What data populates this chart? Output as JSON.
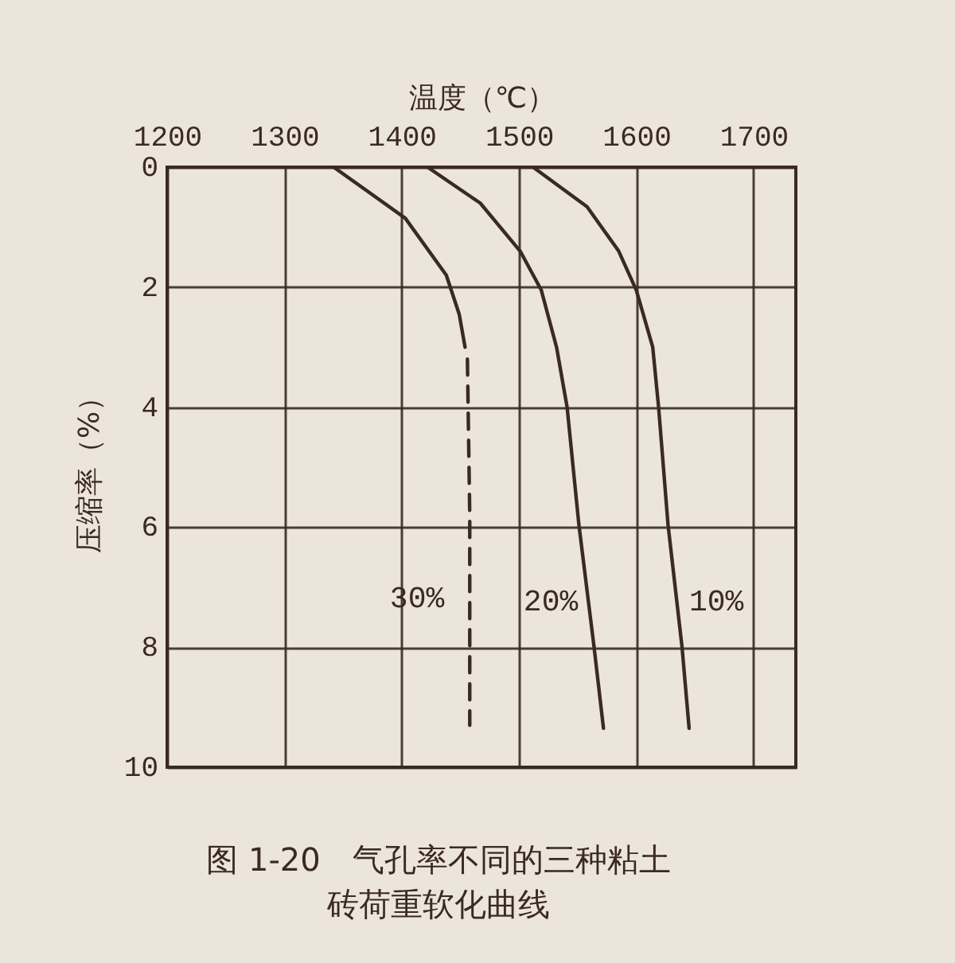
{
  "chart_data": {
    "type": "line",
    "title": "图 1-20　气孔率不同的三种粘土砖荷重软化曲线",
    "xlabel": "温度（℃）",
    "ylabel": "压缩率（%）",
    "xlim": [
      1200,
      1736
    ],
    "xticks": [
      1200,
      1300,
      1400,
      1500,
      1600,
      1700
    ],
    "ylim": [
      10,
      0
    ],
    "yticks": [
      0,
      2,
      4,
      6,
      8,
      10
    ],
    "grid": true,
    "series": [
      {
        "color": "#3a2a22",
        "line_style": "solid",
        "x": [
          1342,
          1403,
          1438,
          1449,
          1454
        ],
        "values": [
          0,
          0.85,
          1.8,
          2.45,
          3.0
        ]
      },
      {
        "name": "30%",
        "color": "#3a2a22",
        "line_style": "dashed",
        "x": [
          1456,
          1458,
          1458
        ],
        "values": [
          3.2,
          5.8,
          9.3
        ]
      },
      {
        "name": "20%",
        "color": "#3a2a22",
        "line_style": "solid",
        "x": [
          1422,
          1467,
          1501,
          1519,
          1532,
          1541,
          1551,
          1564,
          1572
        ],
        "values": [
          0,
          0.6,
          1.4,
          2.05,
          3.0,
          4.0,
          5.95,
          8.0,
          9.35
        ]
      },
      {
        "name": "10%",
        "color": "#3a2a22",
        "line_style": "solid",
        "x": [
          1512,
          1558,
          1585,
          1600,
          1614,
          1619,
          1627,
          1639,
          1645
        ],
        "values": [
          0,
          0.66,
          1.4,
          2.05,
          3.0,
          4.0,
          5.95,
          8.0,
          9.35
        ]
      }
    ]
  }
}
